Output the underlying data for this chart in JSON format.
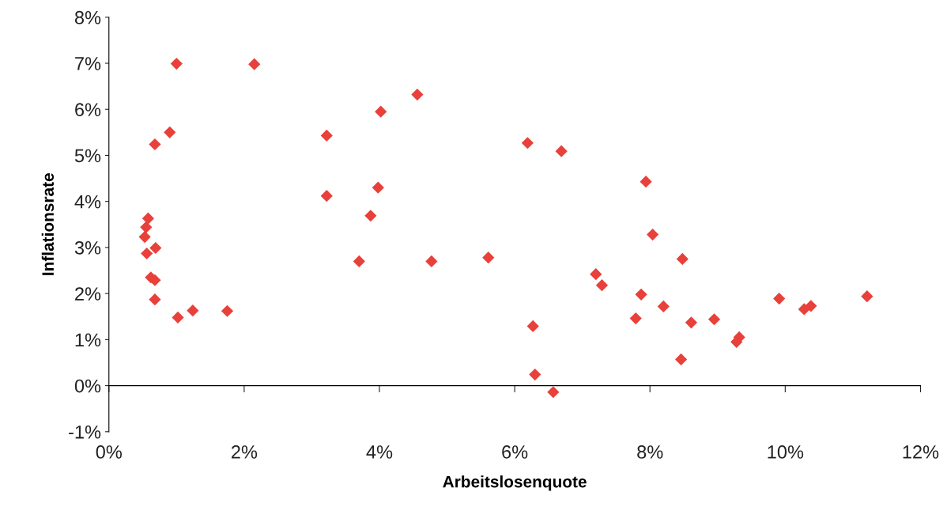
{
  "chart_data": {
    "type": "scatter",
    "xlabel": "Arbeitslosenquote",
    "ylabel": "Inflationsrate",
    "x": [
      1.0,
      2.15,
      4.56,
      4.02,
      0.9,
      0.68,
      3.22,
      6.19,
      6.69,
      3.22,
      3.98,
      7.94,
      3.87,
      0.58,
      0.55,
      0.53,
      0.56,
      0.69,
      8.04,
      3.7,
      4.77,
      5.61,
      8.48,
      0.62,
      0.68,
      7.2,
      7.29,
      0.68,
      1.02,
      1.24,
      1.75,
      7.87,
      8.2,
      7.79,
      8.61,
      8.95,
      9.91,
      10.28,
      10.38,
      11.21,
      9.32,
      9.28,
      8.46,
      6.27,
      6.3,
      6.57
    ],
    "series": [
      {
        "color": "#e8403a",
        "values": [
          6.99,
          6.98,
          6.32,
          5.95,
          5.5,
          5.24,
          5.43,
          5.27,
          5.09,
          4.12,
          4.3,
          4.43,
          3.69,
          3.63,
          3.44,
          3.23,
          2.87,
          2.99,
          3.28,
          2.7,
          2.7,
          2.78,
          2.75,
          2.35,
          2.29,
          2.42,
          2.18,
          1.87,
          1.48,
          1.63,
          1.62,
          1.98,
          1.72,
          1.46,
          1.37,
          1.44,
          1.89,
          1.66,
          1.73,
          1.94,
          1.05,
          0.95,
          0.57,
          1.29,
          0.24,
          -0.14
        ]
      }
    ],
    "marker": "diamond",
    "xlim": [
      0,
      12
    ],
    "ylim": [
      -1,
      8
    ],
    "xticks": [
      {
        "value": 0,
        "label": "0%"
      },
      {
        "value": 2,
        "label": "2%"
      },
      {
        "value": 4,
        "label": "4%"
      },
      {
        "value": 6,
        "label": "6%"
      },
      {
        "value": 8,
        "label": "8%"
      },
      {
        "value": 10,
        "label": "10%"
      },
      {
        "value": 12,
        "label": "12%"
      }
    ],
    "yticks": [
      {
        "value": -1,
        "label": "-1%"
      },
      {
        "value": 0,
        "label": "0%"
      },
      {
        "value": 1,
        "label": "1%"
      },
      {
        "value": 2,
        "label": "2%"
      },
      {
        "value": 3,
        "label": "3%"
      },
      {
        "value": 4,
        "label": "4%"
      },
      {
        "value": 5,
        "label": "5%"
      },
      {
        "value": 6,
        "label": "6%"
      },
      {
        "value": 7,
        "label": "7%"
      },
      {
        "value": 8,
        "label": "8%"
      }
    ]
  }
}
